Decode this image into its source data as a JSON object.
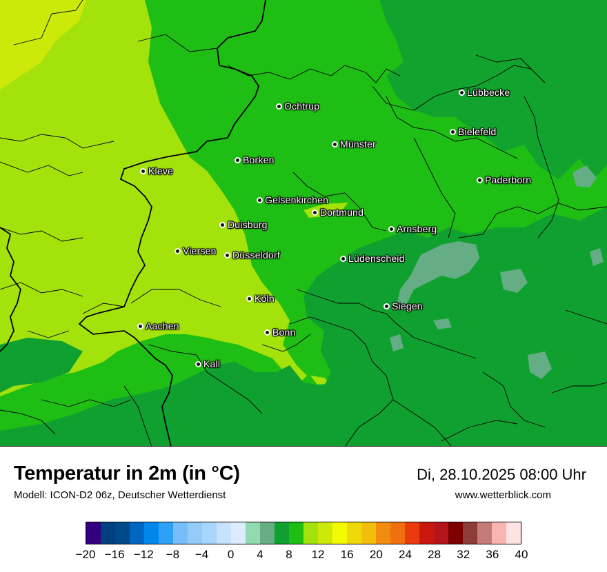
{
  "map": {
    "cities": [
      {
        "name": "Lübbecke"
      },
      {
        "name": "Ochtrup"
      },
      {
        "name": "Bielefeld"
      },
      {
        "name": "Münster"
      },
      {
        "name": "Kleve"
      },
      {
        "name": "Borken"
      },
      {
        "name": "Paderborn"
      },
      {
        "name": "Gelsenkirchen"
      },
      {
        "name": "Dortmund"
      },
      {
        "name": "Duisburg"
      },
      {
        "name": "Arnsberg"
      },
      {
        "name": "Viersen"
      },
      {
        "name": "Düsseldorf"
      },
      {
        "name": "Lüdenscheid"
      },
      {
        "name": "Köln"
      },
      {
        "name": "Siegen"
      },
      {
        "name": "Aachen"
      },
      {
        "name": "Bonn"
      },
      {
        "name": "Kall"
      }
    ]
  },
  "footer": {
    "title": "Temperatur in 2m (in °C)",
    "subtitle": "Modell: ICON-D2 06z, Deutscher Wetterdienst",
    "datetime": "Di, 28.10.2025 08:00 Uhr",
    "website": "www.wetterblick.com"
  },
  "legend": {
    "colors": [
      "#32007f",
      "#003f7f",
      "#004a8c",
      "#0066c4",
      "#0086ed",
      "#2ea1f7",
      "#77bdfa",
      "#93cbfb",
      "#a8d5fb",
      "#c6e2fc",
      "#dcecfd",
      "#91dbb0",
      "#64ad85",
      "#10a030",
      "#1fbe14",
      "#a3e20a",
      "#cde909",
      "#f3f900",
      "#f0d909",
      "#f3bd0c",
      "#f28c0f",
      "#f0700f",
      "#e93b0e",
      "#c9170f",
      "#b4141a",
      "#7d0000",
      "#8f3b37",
      "#c67b7b",
      "#f8b5b1",
      "#fde3e3"
    ],
    "tick_labels": [
      "−20",
      "−16",
      "−12",
      "−8",
      "−4",
      "0",
      "4",
      "8",
      "12",
      "16",
      "20",
      "24",
      "28",
      "32",
      "36",
      "40"
    ]
  }
}
